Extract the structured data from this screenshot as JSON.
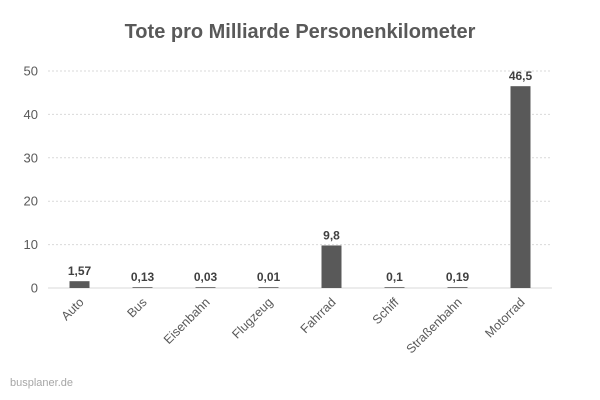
{
  "chart_data": {
    "type": "bar",
    "title": "Tote pro Milliarde Personenkilometer",
    "categories": [
      "Auto",
      "Bus",
      "Eisenbahn",
      "Flugzeug",
      "Fahrrad",
      "Schiff",
      "Straßenbahn",
      "Motorrad"
    ],
    "values": [
      1.57,
      0.13,
      0.03,
      0.01,
      9.8,
      0.1,
      0.19,
      46.5
    ],
    "data_labels": [
      "1,57",
      "0,13",
      "0,03",
      "0,01",
      "9,8",
      "0,1",
      "0,19",
      "46,5"
    ],
    "ylim": [
      0,
      50
    ],
    "yticks": [
      0,
      10,
      20,
      30,
      40,
      50
    ],
    "grid": true,
    "bar_color": "#595959"
  },
  "watermark": "busplaner.de"
}
